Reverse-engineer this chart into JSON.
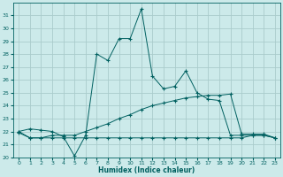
{
  "xlabel": "Humidex (Indice chaleur)",
  "bg_color": "#cceaea",
  "grid_color": "#aacccc",
  "line_color": "#006060",
  "xlim": [
    -0.5,
    23.5
  ],
  "ylim": [
    20,
    32
  ],
  "yticks": [
    20,
    21,
    22,
    23,
    24,
    25,
    26,
    27,
    28,
    29,
    30,
    31
  ],
  "xticks": [
    0,
    1,
    2,
    3,
    4,
    5,
    6,
    7,
    8,
    9,
    10,
    11,
    12,
    13,
    14,
    15,
    16,
    17,
    18,
    19,
    20,
    21,
    22,
    23
  ],
  "series1_x": [
    0,
    1,
    2,
    3,
    4,
    5,
    6,
    7,
    8,
    9,
    10,
    11,
    12,
    13,
    14,
    15,
    16,
    17,
    18,
    19,
    20,
    21,
    22,
    23
  ],
  "series1_y": [
    22.0,
    22.2,
    22.1,
    22.0,
    21.6,
    20.1,
    21.7,
    28.0,
    27.5,
    29.2,
    29.2,
    31.5,
    26.3,
    25.3,
    25.5,
    26.7,
    25.0,
    24.5,
    24.4,
    21.7,
    21.7,
    21.7,
    21.7,
    21.5
  ],
  "series2_x": [
    0,
    1,
    2,
    3,
    4,
    5,
    6,
    7,
    8,
    9,
    10,
    11,
    12,
    13,
    14,
    15,
    16,
    17,
    18,
    19,
    20,
    21,
    22,
    23
  ],
  "series2_y": [
    22.0,
    21.5,
    21.5,
    21.7,
    21.7,
    21.7,
    22.0,
    22.3,
    22.6,
    23.0,
    23.3,
    23.7,
    24.0,
    24.2,
    24.4,
    24.6,
    24.7,
    24.8,
    24.8,
    24.9,
    21.8,
    21.8,
    21.8,
    21.5
  ],
  "series3_x": [
    0,
    1,
    2,
    3,
    4,
    5,
    6,
    7,
    8,
    9,
    10,
    11,
    12,
    13,
    14,
    15,
    16,
    17,
    18,
    19,
    20,
    21,
    22,
    23
  ],
  "series3_y": [
    21.9,
    21.5,
    21.5,
    21.5,
    21.5,
    21.5,
    21.5,
    21.5,
    21.5,
    21.5,
    21.5,
    21.5,
    21.5,
    21.5,
    21.5,
    21.5,
    21.5,
    21.5,
    21.5,
    21.5,
    21.5,
    21.7,
    21.7,
    21.5
  ]
}
